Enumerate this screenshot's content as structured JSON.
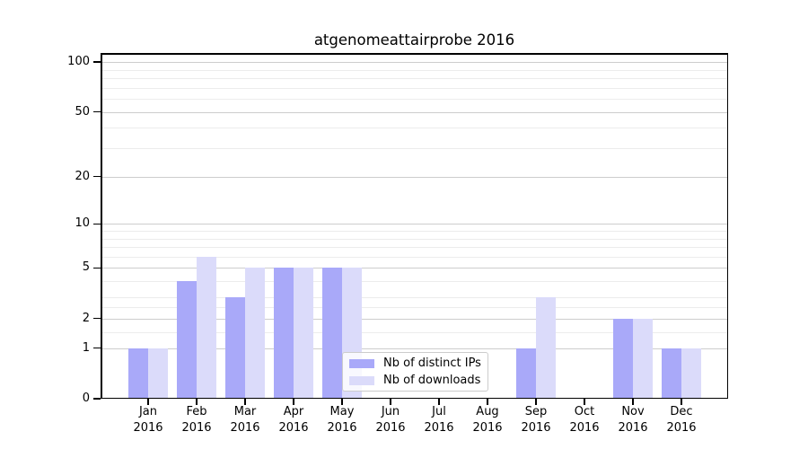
{
  "chart_data": {
    "type": "bar",
    "title": "atgenomeattairprobe 2016",
    "categories": [
      "Jan 2016",
      "Feb 2016",
      "Mar 2016",
      "Apr 2016",
      "May 2016",
      "Jun 2016",
      "Jul 2016",
      "Aug 2016",
      "Sep 2016",
      "Oct 2016",
      "Nov 2016",
      "Dec 2016"
    ],
    "series": [
      {
        "name": "Nb of distinct IPs",
        "color": "#a9a9f9",
        "values": [
          1,
          4,
          3,
          5,
          5,
          0,
          0,
          0,
          1,
          0,
          2,
          1
        ]
      },
      {
        "name": "Nb of downloads",
        "color": "#dbdbfa",
        "values": [
          1,
          6,
          5,
          5,
          5,
          0,
          0,
          0,
          3,
          0,
          2,
          1
        ]
      }
    ],
    "yscale": "log1p",
    "ylim": [
      0,
      113
    ],
    "yticks": [
      0,
      1,
      2,
      5,
      10,
      20,
      50,
      100
    ],
    "minor_gridlines": [
      1.5,
      2.5,
      3,
      4,
      6,
      7,
      8,
      9,
      30,
      40,
      60,
      70,
      80,
      90
    ],
    "grid": "on",
    "legend_position": "lower-center",
    "colors": {
      "major_grid": "#cdcdcd",
      "minor_grid": "#ececec",
      "axis": "#000000",
      "background": "#ffffff",
      "text": "#000000"
    }
  }
}
